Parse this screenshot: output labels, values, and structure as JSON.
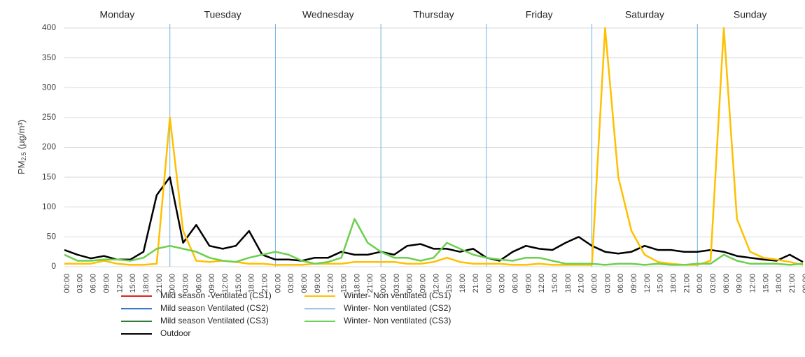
{
  "chart_data": {
    "type": "line",
    "y_label": "PM",
    "y_label_sub": "2.5",
    "y_label_unit": "(µg/m³)",
    "days": [
      "Monday",
      "Tuesday",
      "Wednesday",
      "Thursday",
      "Friday",
      "Saturday",
      "Sunday"
    ],
    "categories": [
      "00:00",
      "03:00",
      "06:00",
      "09:00",
      "12:00",
      "15:00",
      "18:00",
      "21:00",
      "00:00",
      "03:00",
      "06:00",
      "09:00",
      "12:00",
      "15:00",
      "18:00",
      "21:00",
      "00:00",
      "03:00",
      "06:00",
      "09:00",
      "12:00",
      "15:00",
      "18:00",
      "21:00",
      "00:00",
      "03:00",
      "06:00",
      "09:00",
      "12:00",
      "15:00",
      "18:00",
      "21:00",
      "00:00",
      "03:00",
      "06:00",
      "09:00",
      "12:00",
      "15:00",
      "18:00",
      "21:00",
      "00:00",
      "03:00",
      "06:00",
      "09:00",
      "12:00",
      "15:00",
      "18:00",
      "21:00",
      "00:00",
      "03:00",
      "06:00",
      "09:00",
      "12:00",
      "15:00",
      "18:00",
      "21:00",
      "00:00"
    ],
    "ylim": [
      0,
      400
    ],
    "yticks": [
      0,
      50,
      100,
      150,
      200,
      250,
      300,
      350,
      400
    ],
    "grid": true,
    "series": [
      {
        "name": "Mild season -Ventilated (CS1)",
        "color": "#e02020",
        "values": [
          null,
          null,
          null,
          null,
          null,
          null,
          null,
          null,
          null,
          null,
          null,
          null,
          null,
          null,
          null,
          null,
          null,
          null,
          null,
          null,
          null,
          null,
          null,
          null,
          null,
          null,
          null,
          null,
          null,
          null,
          null,
          null,
          null,
          null,
          null,
          null,
          null,
          null,
          null,
          null,
          null,
          null,
          null,
          null,
          null,
          null,
          null,
          null,
          null,
          null,
          null,
          null,
          null,
          null,
          null,
          null,
          null
        ]
      },
      {
        "name": "Mild season Ventilated (CS2)",
        "color": "#3a78c8",
        "values": [
          null,
          null,
          null,
          null,
          null,
          null,
          null,
          null,
          null,
          null,
          null,
          null,
          null,
          null,
          null,
          null,
          null,
          null,
          null,
          null,
          null,
          null,
          null,
          null,
          null,
          null,
          null,
          null,
          null,
          null,
          null,
          null,
          null,
          null,
          null,
          null,
          null,
          null,
          null,
          null,
          null,
          null,
          null,
          null,
          null,
          null,
          null,
          null,
          null,
          null,
          null,
          null,
          null,
          null,
          null,
          null,
          null
        ]
      },
      {
        "name": "Mild season Ventilated (CS3)",
        "color": "#2e7d32",
        "values": [
          null,
          null,
          null,
          null,
          null,
          null,
          null,
          null,
          null,
          null,
          null,
          null,
          null,
          null,
          null,
          null,
          null,
          null,
          null,
          null,
          null,
          null,
          null,
          null,
          null,
          null,
          null,
          null,
          null,
          null,
          null,
          null,
          null,
          null,
          null,
          null,
          null,
          null,
          null,
          null,
          null,
          null,
          null,
          null,
          null,
          null,
          null,
          null,
          null,
          null,
          null,
          null,
          null,
          null,
          null,
          null,
          null
        ]
      },
      {
        "name": "Outdoor",
        "color": "#000000",
        "values": [
          28,
          20,
          14,
          18,
          12,
          12,
          25,
          120,
          150,
          40,
          70,
          35,
          30,
          35,
          60,
          20,
          12,
          12,
          10,
          15,
          15,
          25,
          20,
          20,
          25,
          20,
          35,
          38,
          30,
          30,
          25,
          30,
          15,
          10,
          25,
          35,
          30,
          28,
          40,
          50,
          35,
          25,
          22,
          25,
          35,
          28,
          28,
          25,
          25,
          28,
          25,
          18,
          15,
          12,
          10,
          20,
          8
        ]
      },
      {
        "name": "Winter- Non ventilated (CS1)",
        "color": "#ffc000",
        "values": [
          5,
          5,
          5,
          10,
          5,
          3,
          3,
          5,
          250,
          60,
          10,
          8,
          10,
          8,
          5,
          5,
          3,
          3,
          3,
          5,
          5,
          5,
          8,
          8,
          8,
          8,
          5,
          5,
          8,
          15,
          8,
          5,
          5,
          5,
          3,
          3,
          5,
          3,
          3,
          3,
          3,
          400,
          150,
          60,
          20,
          8,
          5,
          3,
          3,
          10,
          400,
          80,
          25,
          15,
          12,
          8,
          3
        ]
      },
      {
        "name": "Winter- Non ventilated (CS2)",
        "color": "#9dc3e6",
        "values": [
          null,
          null,
          null,
          null,
          null,
          null,
          null,
          null,
          null,
          null,
          null,
          null,
          null,
          null,
          null,
          null,
          null,
          null,
          null,
          null,
          null,
          null,
          null,
          null,
          null,
          null,
          null,
          null,
          null,
          null,
          null,
          null,
          null,
          null,
          null,
          null,
          null,
          null,
          null,
          null,
          null,
          null,
          null,
          null,
          null,
          null,
          null,
          null,
          null,
          null,
          null,
          null,
          null,
          null,
          null,
          null,
          null
        ]
      },
      {
        "name": "Winter- Non ventilated (CS3)",
        "color": "#6ccf4f",
        "values": [
          20,
          10,
          10,
          12,
          12,
          10,
          15,
          30,
          35,
          30,
          25,
          15,
          10,
          8,
          15,
          20,
          25,
          20,
          10,
          5,
          8,
          15,
          80,
          40,
          25,
          15,
          15,
          10,
          15,
          40,
          30,
          20,
          15,
          12,
          10,
          15,
          15,
          10,
          5,
          5,
          5,
          3,
          5,
          5,
          3,
          5,
          3,
          3,
          5,
          5,
          20,
          10,
          5,
          5,
          5,
          3,
          5
        ]
      }
    ]
  }
}
